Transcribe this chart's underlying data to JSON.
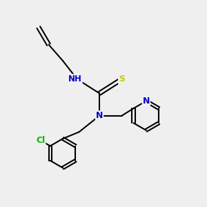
{
  "background_color": "#efefef",
  "bond_color": "#000000",
  "atom_colors": {
    "N": "#0000cc",
    "S": "#cccc00",
    "Cl": "#00bb00",
    "H": "#555555",
    "C": "#000000"
  },
  "figsize": [
    3.0,
    3.0
  ],
  "dpi": 100
}
